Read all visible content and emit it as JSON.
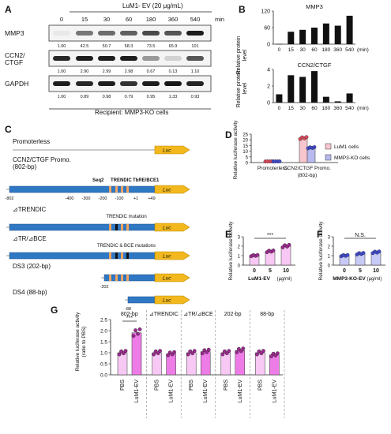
{
  "panels": {
    "A": {
      "letter": "A",
      "treatment": "LuM1- EV (20 μg/mL)",
      "timepoints": [
        "0",
        "15",
        "30",
        "60",
        "180",
        "360",
        "540"
      ],
      "time_unit": "min",
      "blots": [
        {
          "label": "MMP3",
          "quant": [
            "1.00",
            "42.5",
            "50.7",
            "58.3",
            "73.5",
            "65.9",
            "101"
          ]
        },
        {
          "label": "CCN2/\nCTGF",
          "label_lines": [
            "CCN2/",
            "CTGF"
          ],
          "quant": [
            "1.00",
            "2.90",
            "2.99",
            "2.98",
            "0.67",
            "0.13",
            "1.10"
          ]
        },
        {
          "label": "GAPDH",
          "quant": [
            "1.00",
            "0.89",
            "0.98",
            "0.79",
            "0.95",
            "1.33",
            "0.93"
          ]
        }
      ],
      "recipient": "Recipient: MMP3-KO cells"
    },
    "B": {
      "letter": "B",
      "ylabel_lines": [
        "Relative protein",
        "level"
      ],
      "charts": [
        {
          "title": "MMP3",
          "ylim": [
            0,
            120
          ],
          "yticks": [
            "0",
            "60",
            "120"
          ],
          "categories": [
            "0",
            "15",
            "30",
            "60",
            "180",
            "360",
            "540"
          ],
          "x_unit": "(min)",
          "values": [
            1,
            45,
            52,
            60,
            75,
            67,
            103
          ]
        },
        {
          "title": "CCN2/CTGF",
          "ylim": [
            0,
            4
          ],
          "yticks": [
            "0",
            "2",
            "4"
          ],
          "categories": [
            "0",
            "15",
            "30",
            "60",
            "180",
            "360",
            "540"
          ],
          "x_unit": "(min)",
          "values": [
            1,
            3.3,
            3.1,
            3.8,
            0.7,
            0.15,
            1.1
          ]
        }
      ]
    },
    "C": {
      "letter": "C",
      "luc": "Luc",
      "constructs": [
        {
          "name": "Promoterless"
        },
        {
          "name": "CCN2/CTGF Promo.",
          "sub": "(802-bp)",
          "sites": [
            "Seq2",
            "TRENDIC",
            "TbRE/BCE1"
          ],
          "ticks": [
            "-802",
            "-400",
            "-300",
            "-200",
            "-100",
            "+1",
            "+49"
          ]
        },
        {
          "name": "⊿TRENDIC",
          "note": "TRENDIC mutation"
        },
        {
          "name": "⊿TR/⊿BCE",
          "note": "TRENDIC & BCE mutations"
        },
        {
          "name": "DS3 (202-bp)",
          "tick": "-202"
        },
        {
          "name": "DS4 (88-bp)",
          "tick": "-88"
        }
      ]
    },
    "D": {
      "letter": "D",
      "ylabel": "Relative luciferase activity",
      "yticks": [
        "0",
        "5",
        "10",
        "15",
        "20",
        "25"
      ],
      "legend": [
        "LuM1 cells",
        "MMP3-KO cells"
      ],
      "categories": [
        "Promoterless",
        "CCN2/CTGF Promo.",
        "(802-bp)"
      ],
      "chart_data": {
        "type": "bar",
        "categories": [
          "Promoterless",
          "CCN2/CTGF Promo. (802-bp)"
        ],
        "series": [
          {
            "name": "LuM1 cells",
            "values": [
              1.0,
              21.5
            ]
          },
          {
            "name": "MMP3-KO cells",
            "values": [
              1.0,
              13.0
            ]
          }
        ],
        "ylim": [
          0,
          25
        ]
      }
    },
    "E": {
      "letter": "E",
      "ylabel": "Relative luciferase activity",
      "yticks": [
        "0",
        "1",
        "2",
        "3"
      ],
      "categories": [
        "0",
        "5",
        "10"
      ],
      "xlabel": "LuM1-EV",
      "xunit": "(μg/ml)",
      "sig": "***",
      "chart_data": {
        "type": "bar",
        "categories": [
          "0",
          "5",
          "10"
        ],
        "values": [
          1.0,
          1.45,
          2.0
        ],
        "ylim": [
          0,
          3
        ]
      }
    },
    "F": {
      "letter": "F",
      "ylabel": "Relative luciferase activity",
      "yticks": [
        "0",
        "1",
        "2",
        "3"
      ],
      "categories": [
        "0",
        "5",
        "10"
      ],
      "xlabel": "MMP3-KO-EV",
      "xunit": "(μg/ml)",
      "sig": "N.S.",
      "chart_data": {
        "type": "bar",
        "categories": [
          "0",
          "5",
          "10"
        ],
        "values": [
          1.0,
          1.2,
          1.35
        ],
        "ylim": [
          0,
          3
        ]
      }
    },
    "G": {
      "letter": "G",
      "ylabel_lines": [
        "Relative luciferase activity",
        "(ratio to PBS)"
      ],
      "yticks": [
        "0.0",
        "0.5",
        "1.0",
        "1.5",
        "2.0",
        "2.5"
      ],
      "groups": [
        "802-bp",
        "⊿TRENDIC",
        "⊿TR/⊿BCE",
        "202-bp",
        "88-bp"
      ],
      "sig": "***",
      "chart_data": {
        "type": "bar",
        "categories": [
          "PBS",
          "LuM1-EV",
          "PBS",
          "LuM1-EV",
          "PBS",
          "LuM1-EV",
          "PBS",
          "LuM1-EV",
          "PBS",
          "LuM1-EV"
        ],
        "values": [
          1.0,
          1.9,
          1.0,
          0.95,
          1.0,
          1.05,
          1.0,
          1.1,
          1.0,
          0.9
        ],
        "ylim": [
          0,
          2.5
        ]
      }
    }
  }
}
